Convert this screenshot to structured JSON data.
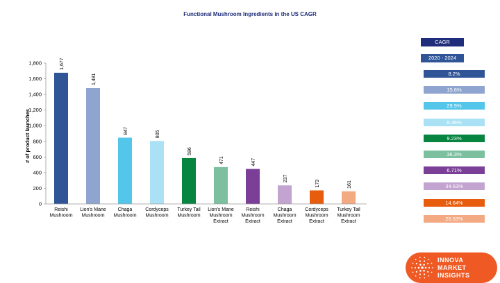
{
  "chart_data": {
    "type": "bar",
    "title": "Functional Mushroom Ingredients in the US CAGR",
    "xlabel": "",
    "ylabel": "# of product launches",
    "ylim": [
      0,
      1800
    ],
    "yticks": [
      "0",
      "200",
      "400",
      "600",
      "800",
      "1,000",
      "1,200",
      "1,400",
      "1,600",
      "1,800"
    ],
    "grid": false,
    "categories": [
      [
        "Reishi",
        "Mushroom"
      ],
      [
        "Lion's Mane",
        "Mushroom"
      ],
      [
        "Chaga",
        "Mushroom"
      ],
      [
        "Cordyceps",
        "Mushroom"
      ],
      [
        "Turkey Tail",
        "Mushroom"
      ],
      [
        "Lion's Mane",
        "Mushroom",
        "Extract"
      ],
      [
        "Reishi",
        "Mushroom",
        "Extract"
      ],
      [
        "Chaga",
        "Mushroom",
        "Extract"
      ],
      [
        "Cordyceps",
        "Mushroom",
        "Extract"
      ],
      [
        "Turkey Tail",
        "Mushroom",
        "Extract"
      ]
    ],
    "values": [
      1677,
      1481,
      847,
      805,
      586,
      471,
      447,
      237,
      173,
      161
    ],
    "value_labels": [
      "1,677",
      "1,481",
      "847",
      "805",
      "586",
      "471",
      "447",
      "237",
      "173",
      "161"
    ],
    "colors": [
      "#2f5597",
      "#8fa5cf",
      "#54c6ea",
      "#abe1f5",
      "#07843f",
      "#7dc0a0",
      "#7b3f98",
      "#c3a3cf",
      "#e85c0d",
      "#f3a982"
    ]
  },
  "cagr": {
    "header": "CAGR",
    "period": "2020 - 2024",
    "header_color": "#1f2d7a",
    "period_color": "#2f5597",
    "values": [
      "8.2%",
      "15.6%",
      "29.9%",
      "8.46%",
      "9.23%",
      "36.3%",
      "6.71%",
      "34.63%",
      "14.64%",
      "26.63%"
    ]
  },
  "logo": {
    "lines": [
      "INNOVA",
      "MARKET",
      "INSIGHTS"
    ],
    "color": "#ef5a24"
  }
}
